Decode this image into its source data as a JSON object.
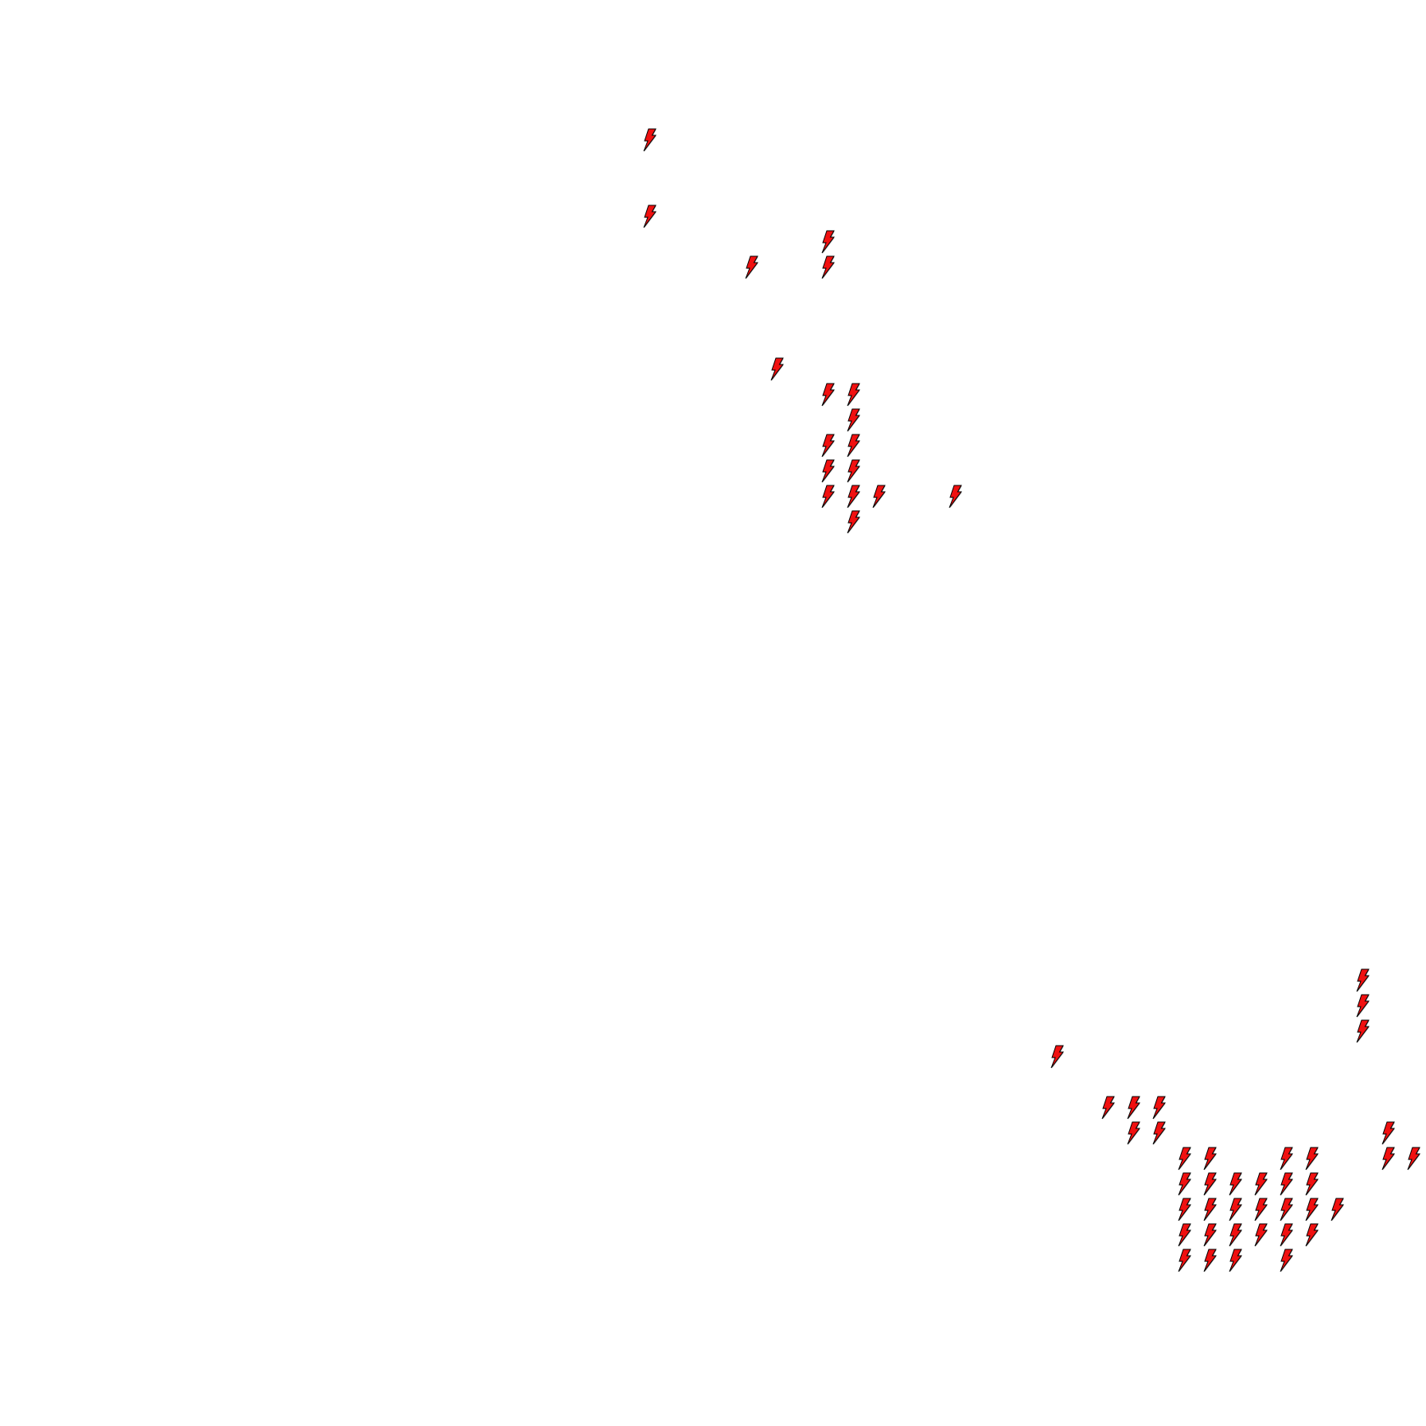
{
  "map": {
    "marker_icon": "lightning-bolt-icon",
    "marker_fill": "#f01010",
    "marker_stroke": "#000000",
    "marker_shadow": "#9a9a9a",
    "background": "#ffffff"
  }
}
